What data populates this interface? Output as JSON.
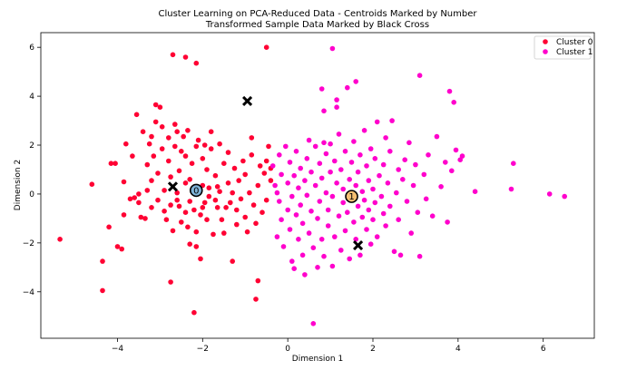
{
  "chart_data": {
    "type": "scatter",
    "title_line1": "Cluster Learning on PCA-Reduced Data - Centroids Marked by Number",
    "title_line2": "Transformed Sample Data Marked by Black Cross",
    "xlabel": "Dimension 1",
    "ylabel": "Dimension 2",
    "xlim": [
      -5.8,
      7.2
    ],
    "ylim": [
      -5.9,
      6.6
    ],
    "xticks": [
      -4,
      -2,
      0,
      2,
      4,
      6
    ],
    "yticks": [
      -4,
      -2,
      0,
      2,
      4,
      6
    ],
    "grid": false,
    "legend_position": "top-right",
    "series": [
      {
        "name": "Cluster 0",
        "color": "#ff0033",
        "points": [
          [
            -5.35,
            -1.85
          ],
          [
            -4.6,
            0.4
          ],
          [
            -4.35,
            -2.75
          ],
          [
            -4.35,
            -3.95
          ],
          [
            -4.2,
            -1.35
          ],
          [
            -4.15,
            1.25
          ],
          [
            -4.05,
            1.25
          ],
          [
            -4.0,
            -2.15
          ],
          [
            -3.9,
            -2.25
          ],
          [
            -3.85,
            -0.85
          ],
          [
            -3.85,
            0.5
          ],
          [
            -3.8,
            2.05
          ],
          [
            -3.7,
            -0.2
          ],
          [
            -3.65,
            1.55
          ],
          [
            -3.55,
            3.25
          ],
          [
            -3.5,
            -0.35
          ],
          [
            -3.5,
            0.0
          ],
          [
            -3.45,
            -0.95
          ],
          [
            -3.4,
            2.55
          ],
          [
            -3.35,
            -1.0
          ],
          [
            -3.3,
            0.15
          ],
          [
            -3.3,
            1.2
          ],
          [
            -3.25,
            2.05
          ],
          [
            -3.2,
            -0.55
          ],
          [
            -3.2,
            0.55
          ],
          [
            -3.2,
            2.35
          ],
          [
            -3.15,
            1.55
          ],
          [
            -3.1,
            2.95
          ],
          [
            -3.05,
            0.85
          ],
          [
            -3.05,
            -0.25
          ],
          [
            -3.0,
            3.55
          ],
          [
            -2.95,
            2.75
          ],
          [
            -2.95,
            1.85
          ],
          [
            -2.9,
            -0.7
          ],
          [
            -2.9,
            0.15
          ],
          [
            -2.85,
            -1.05
          ],
          [
            -2.8,
            1.35
          ],
          [
            -2.8,
            2.3
          ],
          [
            -2.75,
            -0.45
          ],
          [
            -2.75,
            0.7
          ],
          [
            -2.7,
            -1.5
          ],
          [
            -2.65,
            1.95
          ],
          [
            -2.65,
            2.85
          ],
          [
            -2.6,
            -0.25
          ],
          [
            -2.6,
            0.05
          ],
          [
            -2.6,
            2.55
          ],
          [
            -2.55,
            0.95
          ],
          [
            -2.5,
            1.75
          ],
          [
            -2.5,
            -1.15
          ],
          [
            -2.45,
            2.35
          ],
          [
            -2.4,
            1.55
          ],
          [
            -2.4,
            -0.75
          ],
          [
            -2.4,
            0.45
          ],
          [
            -2.35,
            2.6
          ],
          [
            -2.35,
            -1.35
          ],
          [
            -2.3,
            0.6
          ],
          [
            -2.3,
            -0.3
          ],
          [
            -2.3,
            -2.05
          ],
          [
            -2.25,
            1.25
          ],
          [
            -2.2,
            -0.65
          ],
          [
            -2.2,
            0.05
          ],
          [
            -2.15,
            -1.55
          ],
          [
            -2.15,
            -2.15
          ],
          [
            -2.15,
            1.95
          ],
          [
            -2.1,
            2.2
          ],
          [
            -2.05,
            -0.85
          ],
          [
            -2.05,
            -2.65
          ],
          [
            -2.0,
            0.35
          ],
          [
            -2.0,
            1.45
          ],
          [
            -1.95,
            -0.35
          ],
          [
            -1.95,
            2.0
          ],
          [
            -1.9,
            -1.05
          ],
          [
            -1.9,
            1.0
          ],
          [
            -1.85,
            0.25
          ],
          [
            -1.85,
            -0.1
          ],
          [
            -1.8,
            1.85
          ],
          [
            -1.8,
            2.55
          ],
          [
            -1.75,
            -1.65
          ],
          [
            -1.7,
            -0.25
          ],
          [
            -1.7,
            0.75
          ],
          [
            -1.65,
            0.3
          ],
          [
            -1.65,
            -0.55
          ],
          [
            -1.6,
            2.05
          ],
          [
            -1.55,
            -1.05
          ],
          [
            -1.5,
            1.25
          ],
          [
            -1.5,
            -1.6
          ],
          [
            -1.45,
            -0.55
          ],
          [
            -1.4,
            0.45
          ],
          [
            -1.4,
            1.7
          ],
          [
            -1.35,
            -0.35
          ],
          [
            -1.3,
            -2.75
          ],
          [
            -1.3,
            0.05
          ],
          [
            -1.25,
            1.05
          ],
          [
            -1.2,
            -1.25
          ],
          [
            -1.2,
            -0.65
          ],
          [
            -1.15,
            0.55
          ],
          [
            -1.1,
            -0.2
          ],
          [
            -1.05,
            1.35
          ],
          [
            -1.0,
            -0.95
          ],
          [
            -1.0,
            0.8
          ],
          [
            -0.95,
            -1.55
          ],
          [
            -0.9,
            0.05
          ],
          [
            -0.85,
            2.3
          ],
          [
            -0.85,
            1.6
          ],
          [
            -0.8,
            -0.45
          ],
          [
            -0.75,
            -1.2
          ],
          [
            -0.75,
            -4.3
          ],
          [
            -0.7,
            0.35
          ],
          [
            -0.7,
            -3.55
          ],
          [
            -0.65,
            1.15
          ],
          [
            -0.6,
            -0.75
          ],
          [
            -0.55,
            0.85
          ],
          [
            -0.5,
            1.35
          ],
          [
            -0.5,
            -0.25
          ],
          [
            -0.5,
            6.0
          ],
          [
            -0.45,
            1.95
          ],
          [
            -0.4,
            0.55
          ],
          [
            -0.4,
            1.05
          ],
          [
            -2.7,
            5.7
          ],
          [
            -2.4,
            5.6
          ],
          [
            -2.15,
            5.35
          ],
          [
            -3.1,
            3.65
          ],
          [
            -2.75,
            -3.6
          ],
          [
            -2.2,
            -4.85
          ],
          [
            -1.6,
            0.1
          ],
          [
            -2.55,
            -0.5
          ],
          [
            -3.6,
            -0.15
          ],
          [
            -2.0,
            -0.55
          ]
        ]
      },
      {
        "name": "Cluster 1",
        "color": "#ff00cc",
        "points": [
          [
            -0.35,
            1.15
          ],
          [
            -0.3,
            0.35
          ],
          [
            -0.25,
            -1.75
          ],
          [
            -0.25,
            0.05
          ],
          [
            -0.2,
            1.6
          ],
          [
            -0.2,
            -0.3
          ],
          [
            -0.15,
            0.8
          ],
          [
            -0.15,
            -1.05
          ],
          [
            -0.1,
            -2.15
          ],
          [
            -0.05,
            1.95
          ],
          [
            0.0,
            -0.65
          ],
          [
            0.0,
            0.45
          ],
          [
            0.05,
            1.3
          ],
          [
            0.05,
            -1.45
          ],
          [
            0.1,
            -2.75
          ],
          [
            0.1,
            -0.1
          ],
          [
            0.15,
            0.75
          ],
          [
            0.15,
            -3.05
          ],
          [
            0.2,
            1.75
          ],
          [
            0.2,
            -0.85
          ],
          [
            0.25,
            0.25
          ],
          [
            0.25,
            -1.85
          ],
          [
            0.3,
            -0.45
          ],
          [
            0.3,
            1.05
          ],
          [
            0.35,
            -2.5
          ],
          [
            0.35,
            -1.2
          ],
          [
            0.4,
            0.55
          ],
          [
            0.4,
            -3.3
          ],
          [
            0.45,
            1.45
          ],
          [
            0.45,
            -0.05
          ],
          [
            0.5,
            -1.6
          ],
          [
            0.5,
            2.2
          ],
          [
            0.55,
            -0.7
          ],
          [
            0.55,
            0.9
          ],
          [
            0.6,
            -2.2
          ],
          [
            0.6,
            -5.3
          ],
          [
            0.65,
            0.35
          ],
          [
            0.65,
            1.95
          ],
          [
            0.7,
            -1.0
          ],
          [
            0.7,
            -3.0
          ],
          [
            0.75,
            1.25
          ],
          [
            0.75,
            -0.3
          ],
          [
            0.8,
            -1.85
          ],
          [
            0.8,
            0.65
          ],
          [
            0.85,
            3.4
          ],
          [
            0.85,
            -2.55
          ],
          [
            0.9,
            0.05
          ],
          [
            0.9,
            1.65
          ],
          [
            0.95,
            -1.3
          ],
          [
            0.95,
            -0.65
          ],
          [
            1.0,
            2.05
          ],
          [
            1.0,
            0.9
          ],
          [
            1.05,
            -2.95
          ],
          [
            1.05,
            -0.1
          ],
          [
            1.1,
            1.35
          ],
          [
            1.1,
            -1.75
          ],
          [
            1.15,
            0.45
          ],
          [
            1.15,
            3.85
          ],
          [
            1.2,
            -0.9
          ],
          [
            1.2,
            2.45
          ],
          [
            1.25,
            -2.3
          ],
          [
            1.25,
            1.0
          ],
          [
            1.3,
            -0.35
          ],
          [
            1.3,
            0.2
          ],
          [
            1.35,
            1.75
          ],
          [
            1.35,
            -1.5
          ],
          [
            1.4,
            4.35
          ],
          [
            1.4,
            -0.75
          ],
          [
            1.45,
            0.6
          ],
          [
            1.45,
            -2.65
          ],
          [
            1.5,
            1.3
          ],
          [
            1.5,
            -0.05
          ],
          [
            1.55,
            -1.15
          ],
          [
            1.55,
            2.15
          ],
          [
            1.6,
            0.35
          ],
          [
            1.6,
            -1.85
          ],
          [
            1.65,
            -0.5
          ],
          [
            1.65,
            0.9
          ],
          [
            1.7,
            1.6
          ],
          [
            1.7,
            -2.5
          ],
          [
            1.75,
            -0.95
          ],
          [
            1.75,
            0.1
          ],
          [
            1.8,
            2.6
          ],
          [
            1.8,
            -0.25
          ],
          [
            1.85,
            1.15
          ],
          [
            1.85,
            -1.45
          ],
          [
            1.9,
            0.55
          ],
          [
            1.9,
            -0.65
          ],
          [
            1.95,
            1.85
          ],
          [
            1.95,
            -2.05
          ],
          [
            2.0,
            0.2
          ],
          [
            2.0,
            -1.05
          ],
          [
            2.05,
            1.45
          ],
          [
            2.05,
            -0.35
          ],
          [
            2.1,
            2.95
          ],
          [
            2.1,
            -1.75
          ],
          [
            2.15,
            0.75
          ],
          [
            2.2,
            -0.1
          ],
          [
            2.25,
            1.2
          ],
          [
            2.25,
            -0.8
          ],
          [
            2.3,
            2.3
          ],
          [
            2.3,
            -1.3
          ],
          [
            2.35,
            0.45
          ],
          [
            2.4,
            -0.5
          ],
          [
            2.4,
            1.75
          ],
          [
            2.45,
            3.0
          ],
          [
            2.5,
            -2.35
          ],
          [
            2.55,
            0.05
          ],
          [
            2.6,
            1.0
          ],
          [
            2.6,
            -1.05
          ],
          [
            2.65,
            -2.5
          ],
          [
            2.7,
            0.6
          ],
          [
            2.75,
            1.4
          ],
          [
            2.8,
            -0.3
          ],
          [
            2.85,
            2.1
          ],
          [
            2.9,
            -1.6
          ],
          [
            2.95,
            0.35
          ],
          [
            3.0,
            1.2
          ],
          [
            3.05,
            -0.75
          ],
          [
            3.1,
            4.85
          ],
          [
            3.1,
            -2.55
          ],
          [
            3.2,
            0.8
          ],
          [
            3.25,
            -0.2
          ],
          [
            3.3,
            1.6
          ],
          [
            3.4,
            -0.9
          ],
          [
            3.5,
            2.35
          ],
          [
            3.6,
            0.3
          ],
          [
            3.7,
            1.3
          ],
          [
            3.75,
            -1.15
          ],
          [
            3.8,
            4.2
          ],
          [
            3.85,
            0.95
          ],
          [
            3.9,
            3.75
          ],
          [
            3.95,
            1.8
          ],
          [
            4.05,
            1.4
          ],
          [
            4.1,
            1.55
          ],
          [
            4.4,
            0.1
          ],
          [
            5.25,
            0.2
          ],
          [
            5.3,
            1.25
          ],
          [
            6.15,
            0.0
          ],
          [
            6.5,
            -0.1
          ],
          [
            0.8,
            4.3
          ],
          [
            1.05,
            5.95
          ],
          [
            1.15,
            3.55
          ],
          [
            1.6,
            4.6
          ],
          [
            0.85,
            2.1
          ]
        ]
      }
    ],
    "centroids": [
      {
        "label": "0",
        "x": -2.15,
        "y": 0.15
      },
      {
        "label": "1",
        "x": 1.5,
        "y": -0.1
      }
    ],
    "samples": [
      {
        "x": -0.95,
        "y": 3.8
      },
      {
        "x": -2.7,
        "y": 0.3
      },
      {
        "x": 1.65,
        "y": -2.1
      }
    ]
  }
}
